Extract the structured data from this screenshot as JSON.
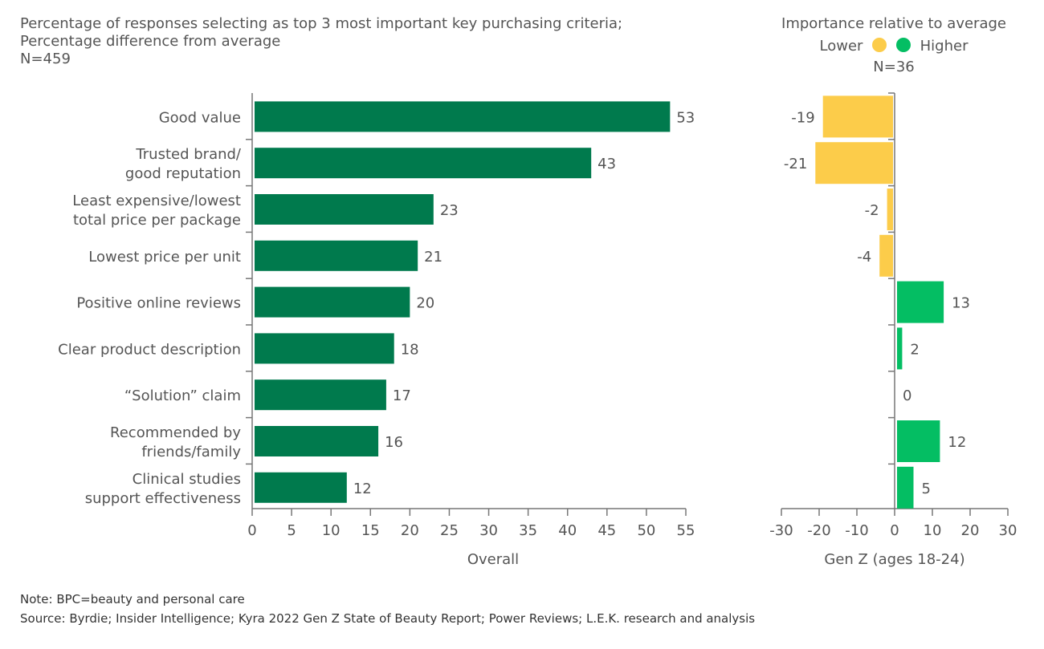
{
  "colors": {
    "overall_bar": "#007a4d",
    "lower": "#fccc4a",
    "higher": "#04be63",
    "text": "#555555",
    "axis": "#777777"
  },
  "header_left": {
    "line1": "Percentage of responses selecting as top 3 most important key purchasing criteria;",
    "line2": "Percentage difference from average",
    "n": "N=459"
  },
  "header_right": {
    "title": "Importance relative to average",
    "legend_lower": "Lower",
    "legend_higher": "Higher",
    "n": "N=36"
  },
  "chart_data": [
    {
      "type": "bar",
      "orientation": "horizontal",
      "categories": [
        [
          "Good value"
        ],
        [
          "Trusted brand/",
          "good reputation"
        ],
        [
          "Least expensive/lowest",
          "total price per package"
        ],
        [
          "Lowest price per unit"
        ],
        [
          "Positive online reviews"
        ],
        [
          "Clear product description"
        ],
        [
          "“Solution” claim"
        ],
        [
          "Recommended by",
          "friends/family"
        ],
        [
          "Clinical studies",
          "support effectiveness"
        ]
      ],
      "values": [
        53,
        43,
        23,
        21,
        20,
        18,
        17,
        16,
        12
      ],
      "xlabel": "Overall",
      "xlim": [
        0,
        55
      ],
      "xticks": [
        0,
        5,
        10,
        15,
        20,
        25,
        30,
        35,
        40,
        45,
        50,
        55
      ],
      "grid": false
    },
    {
      "type": "bar",
      "orientation": "horizontal",
      "values": [
        -19,
        -21,
        -2,
        -4,
        13,
        2,
        0,
        12,
        5
      ],
      "xlabel": "Gen Z (ages 18-24)",
      "xlim": [
        -30,
        30
      ],
      "xticks": [
        -30,
        -20,
        -10,
        0,
        10,
        20,
        30
      ],
      "grid": false,
      "legend": "top"
    }
  ],
  "footer": {
    "note": "Note: BPC=beauty and personal care",
    "source": "Source: Byrdie; Insider Intelligence; Kyra 2022 Gen Z State of Beauty Report; Power Reviews; L.E.K. research and analysis"
  }
}
